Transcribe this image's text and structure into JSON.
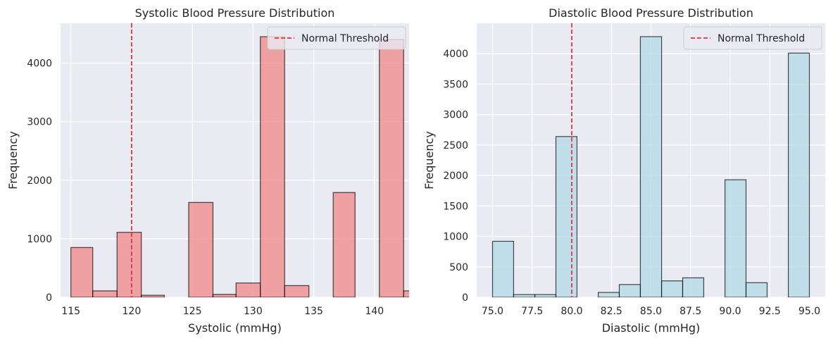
{
  "chart_data": [
    {
      "type": "bar",
      "title": "Systolic Blood Pressure Distribution",
      "xlabel": "Systolic (mmHg)",
      "ylabel": "Frequency",
      "xlim": [
        114.15,
        142.85
      ],
      "ylim": [
        0,
        4680
      ],
      "xticks": [
        115,
        120,
        125,
        130,
        135,
        140
      ],
      "yticks": [
        0,
        1000,
        2000,
        3000,
        4000
      ],
      "bins": [
        {
          "x0": 115.0,
          "x1": 116.8,
          "count": 850
        },
        {
          "x0": 116.8,
          "x1": 118.8,
          "count": 110
        },
        {
          "x0": 118.8,
          "x1": 120.8,
          "count": 1110
        },
        {
          "x0": 120.8,
          "x1": 122.7,
          "count": 35
        },
        {
          "x0": 122.7,
          "x1": 124.7,
          "count": 0
        },
        {
          "x0": 124.7,
          "x1": 126.7,
          "count": 1620
        },
        {
          "x0": 126.7,
          "x1": 128.6,
          "count": 50
        },
        {
          "x0": 128.6,
          "x1": 130.6,
          "count": 245
        },
        {
          "x0": 130.6,
          "x1": 132.6,
          "count": 4450
        },
        {
          "x0": 132.6,
          "x1": 134.6,
          "count": 200
        },
        {
          "x0": 134.6,
          "x1": 136.6,
          "count": 0
        },
        {
          "x0": 136.6,
          "x1": 138.4,
          "count": 1790
        },
        {
          "x0": 138.4,
          "x1": 140.4,
          "count": 0
        },
        {
          "x0": 140.4,
          "x1": 142.4,
          "count": 4400
        },
        {
          "x0": 142.4,
          "x1": 144.4,
          "count": 110
        }
      ],
      "threshold": 120,
      "threshold_label": "Normal Threshold",
      "bar_color": "#f08080",
      "threshold_color": "#e8323c",
      "legend_position": "top-right",
      "grid": true
    },
    {
      "type": "bar",
      "title": "Diastolic Blood Pressure Distribution",
      "xlabel": "Diastolic (mmHg)",
      "ylabel": "Frequency",
      "xlim": [
        74.0,
        96.0
      ],
      "ylim": [
        0,
        4500
      ],
      "xticks": [
        75.0,
        77.5,
        80.0,
        82.5,
        85.0,
        87.5,
        90.0,
        92.5,
        95.0
      ],
      "xtick_labels": [
        "75.0",
        "77.5",
        "80.0",
        "82.5",
        "85.0",
        "87.5",
        "90.0",
        "92.5",
        "95.0"
      ],
      "yticks": [
        0,
        500,
        1000,
        1500,
        2000,
        2500,
        3000,
        3500,
        4000
      ],
      "bins": [
        {
          "x0": 75.0,
          "x1": 76.33,
          "count": 920
        },
        {
          "x0": 76.33,
          "x1": 77.67,
          "count": 45
        },
        {
          "x0": 77.67,
          "x1": 79.0,
          "count": 45
        },
        {
          "x0": 79.0,
          "x1": 80.33,
          "count": 2640
        },
        {
          "x0": 80.33,
          "x1": 81.67,
          "count": 0
        },
        {
          "x0": 81.67,
          "x1": 83.0,
          "count": 80
        },
        {
          "x0": 83.0,
          "x1": 84.33,
          "count": 210
        },
        {
          "x0": 84.33,
          "x1": 85.67,
          "count": 4280
        },
        {
          "x0": 85.67,
          "x1": 87.0,
          "count": 270
        },
        {
          "x0": 87.0,
          "x1": 88.33,
          "count": 320
        },
        {
          "x0": 88.33,
          "x1": 89.67,
          "count": 0
        },
        {
          "x0": 89.67,
          "x1": 91.0,
          "count": 1930
        },
        {
          "x0": 91.0,
          "x1": 92.33,
          "count": 240
        },
        {
          "x0": 92.33,
          "x1": 93.67,
          "count": 0
        },
        {
          "x0": 93.67,
          "x1": 95.0,
          "count": 4010
        }
      ],
      "threshold": 80,
      "threshold_label": "Normal Threshold",
      "bar_color": "#add8e6",
      "threshold_color": "#e8323c",
      "legend_position": "top-right",
      "grid": true
    }
  ]
}
